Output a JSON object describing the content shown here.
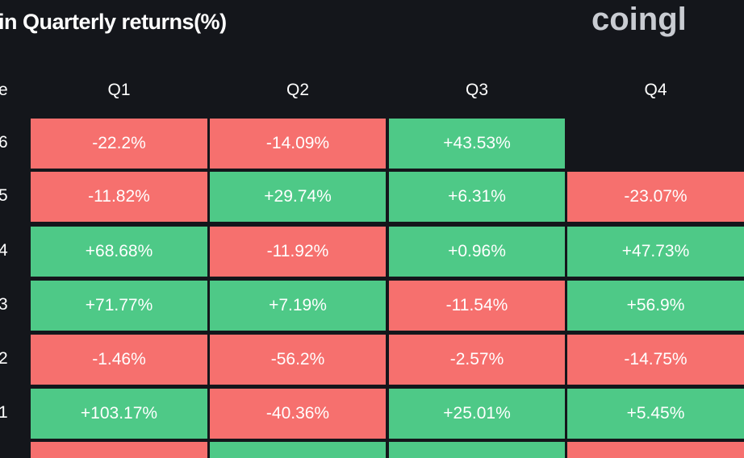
{
  "title": "in Quarterly returns(%)",
  "logo": "coingl",
  "header": [
    "e",
    "Q1",
    "Q2",
    "Q3",
    "Q4"
  ],
  "rows": [
    [
      "6",
      "-22.2%",
      "-14.09%",
      "+43.53%",
      null
    ],
    [
      "5",
      "-11.82%",
      "+29.74%",
      "+6.31%",
      "-23.07%"
    ],
    [
      "4",
      "+68.68%",
      "-11.92%",
      "+0.96%",
      "+47.73%"
    ],
    [
      "3",
      "+71.77%",
      "+7.19%",
      "-11.54%",
      "+56.9%"
    ],
    [
      "2",
      "-1.46%",
      "-56.2%",
      "-2.57%",
      "-14.75%"
    ],
    [
      "1",
      "+103.17%",
      "-40.36%",
      "+25.01%",
      "+5.45%"
    ]
  ]
}
